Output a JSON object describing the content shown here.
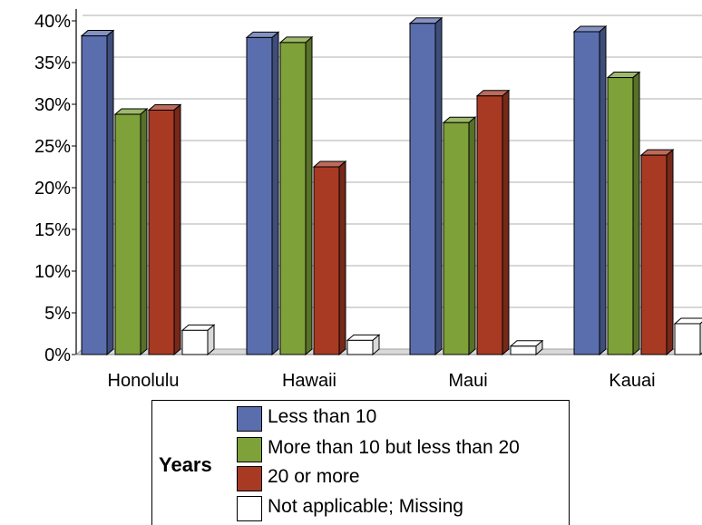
{
  "chart_data": {
    "type": "bar",
    "title": "",
    "xlabel": "",
    "ylabel": "",
    "categories": [
      "Honolulu",
      "Hawaii",
      "Maui",
      "Kauai"
    ],
    "ylim": [
      0,
      40
    ],
    "yticks": [
      "0%",
      "5%",
      "10%",
      "15%",
      "20%",
      "25%",
      "30%",
      "35%",
      "40%"
    ],
    "grid": true,
    "legend_position": "bottom",
    "legend_title": "Years",
    "series": [
      {
        "name": "Less than 10",
        "color": "#5a6eae",
        "values": [
          38.2,
          38.0,
          39.7,
          38.7
        ]
      },
      {
        "name": "More than 10 but less than 20",
        "color": "#7ea13a",
        "values": [
          28.8,
          37.4,
          27.8,
          33.2
        ]
      },
      {
        "name": "20 or more",
        "color": "#a83a24",
        "values": [
          29.3,
          22.5,
          31.0,
          23.9
        ]
      },
      {
        "name": "Not applicable; Missing",
        "color": "#ffffff",
        "values": [
          2.9,
          1.7,
          1.0,
          3.7
        ]
      }
    ]
  }
}
